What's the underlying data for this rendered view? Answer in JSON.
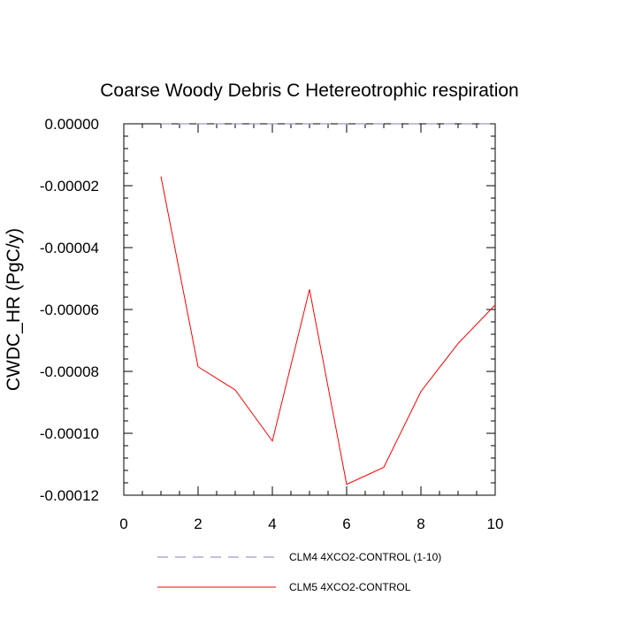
{
  "chart_data": {
    "type": "line",
    "title": "Coarse Woody Debris C Hetereotrophic respiration",
    "xlabel": "",
    "ylabel": "CWDC_HR  (PgC/y)",
    "xlim": [
      0,
      10
    ],
    "ylim": [
      -0.00012,
      0
    ],
    "xticks": [
      0,
      2,
      4,
      6,
      8,
      10
    ],
    "xtick_labels": [
      "0",
      "2",
      "4",
      "6",
      "8",
      "10"
    ],
    "yticks": [
      0,
      -2e-05,
      -4e-05,
      -6e-05,
      -8e-05,
      -0.0001,
      -0.00012
    ],
    "ytick_labels": [
      "0.00000",
      "-0.00002",
      "-0.00004",
      "-0.00006",
      "-0.00008",
      "-0.00010",
      "-0.00012"
    ],
    "grid": false,
    "legend_position": "bottom",
    "series": [
      {
        "name": "CLM4 4XCO2-CONTROL (1-10)",
        "color": "#8080c0",
        "style": "dashed",
        "x": [
          1,
          2,
          3,
          4,
          5,
          6,
          7,
          8,
          9,
          10
        ],
        "values": [
          0,
          0,
          0,
          0,
          0,
          0,
          0,
          0,
          0,
          0
        ]
      },
      {
        "name": "CLM5 4XCO2-CONTROL",
        "color": "#ff0000",
        "style": "solid",
        "x": [
          1,
          2,
          3,
          4,
          5,
          6,
          7,
          8,
          9,
          10
        ],
        "values": [
          -1.7e-05,
          -7.85e-05,
          -8.6e-05,
          -0.0001025,
          -5.35e-05,
          -0.0001165,
          -0.000111,
          -8.65e-05,
          -7.1e-05,
          -5.85e-05
        ]
      }
    ]
  }
}
